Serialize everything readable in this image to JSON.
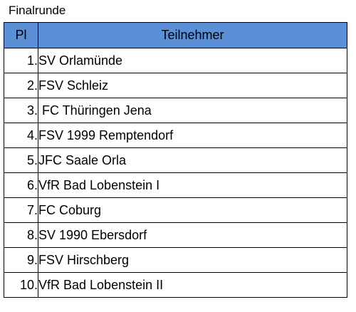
{
  "title": "Finalrunde",
  "header": {
    "place": "Pl",
    "participant": "Teilnehmer"
  },
  "rows": [
    {
      "place": "1.",
      "name": "SV Orlamünde"
    },
    {
      "place": "2.",
      "name": "FSV Schleiz"
    },
    {
      "place": "3.",
      "name": " FC Thüringen Jena"
    },
    {
      "place": "4.",
      "name": "FSV 1999 Remptendorf"
    },
    {
      "place": "5.",
      "name": "JFC Saale Orla"
    },
    {
      "place": "6.",
      "name": "VfR Bad Lobenstein I"
    },
    {
      "place": "7.",
      "name": "FC Coburg"
    },
    {
      "place": "8.",
      "name": "SV 1990 Ebersdorf"
    },
    {
      "place": "9.",
      "name": "FSV Hirschberg"
    },
    {
      "place": "10.",
      "name": "VfR Bad Lobenstein II"
    }
  ],
  "colors": {
    "header_background": "#5b8fd6",
    "border": "#000000"
  }
}
